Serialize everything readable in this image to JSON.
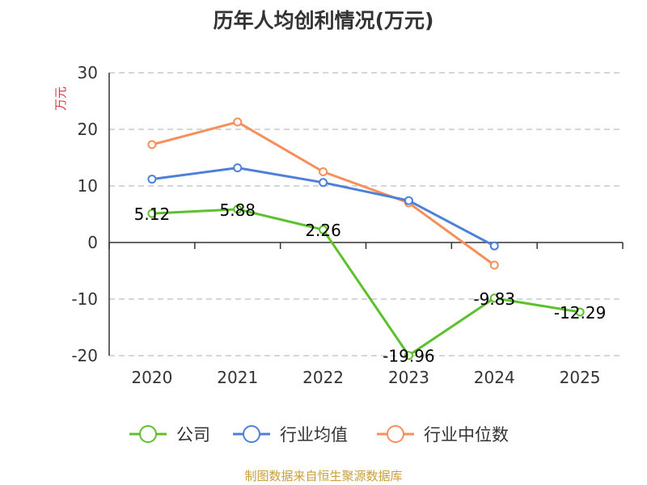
{
  "chart_data": {
    "type": "line",
    "title": "历年人均创利情况(万元)",
    "ylabel": "万元",
    "x": [
      "2020",
      "2021",
      "2022",
      "2023",
      "2024",
      "2025"
    ],
    "ylim": [
      -20,
      30
    ],
    "yticks": [
      30,
      20,
      10,
      0,
      -10,
      -20
    ],
    "grid": true,
    "legend_position": "bottom",
    "series": [
      {
        "name": "公司",
        "color": "#5cc12c",
        "values": [
          5.12,
          5.88,
          2.26,
          -19.96,
          -9.83,
          -12.29
        ],
        "labels": [
          "5.12",
          "5.88",
          "2.26",
          "-19.96",
          "-9.83",
          "-12.29"
        ]
      },
      {
        "name": "行业均值",
        "color": "#4f80d9",
        "values": [
          11.2,
          13.2,
          10.6,
          7.4,
          -0.6,
          null
        ]
      },
      {
        "name": "行业中位数",
        "color": "#f78f5a",
        "values": [
          17.3,
          21.3,
          12.5,
          7.0,
          -4.0,
          null
        ]
      }
    ]
  },
  "footer": {
    "source": "制图数据来自恒生聚源数据库"
  }
}
